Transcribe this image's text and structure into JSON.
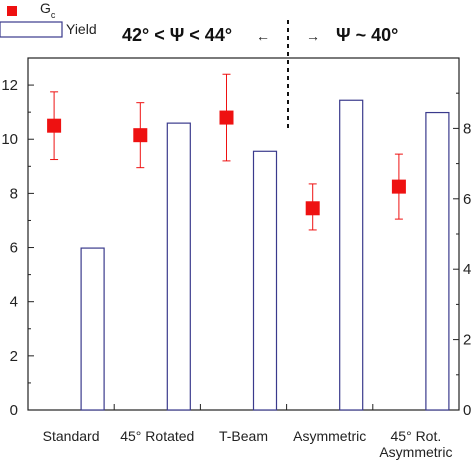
{
  "chart_data": {
    "type": "bar",
    "categories": [
      "Standard",
      "45° Rotated",
      "T-Beam",
      "Asymmetric",
      "45° Rot. Asymmetric"
    ],
    "category_lines": [
      [
        "Standard"
      ],
      [
        "45° Rotated"
      ],
      [
        "T-Beam"
      ],
      [
        "Asymmetric"
      ],
      [
        "45° Rot.",
        "Asymmetric"
      ]
    ],
    "series": [
      {
        "name": "G",
        "name_subscript": "c",
        "kind": "point-errorbar",
        "axis": "left",
        "values": [
          10.5,
          10.15,
          10.8,
          7.45,
          8.25
        ],
        "err_low": [
          1.25,
          1.2,
          1.6,
          0.8,
          1.2
        ],
        "err_high": [
          1.25,
          1.2,
          1.6,
          0.9,
          1.2
        ],
        "color": "#ee1111"
      },
      {
        "name": "Yield",
        "kind": "bar",
        "axis": "right",
        "values": [
          4.6,
          8.15,
          7.35,
          8.8,
          8.45
        ],
        "color": "#3a3a8c"
      }
    ],
    "y_left": {
      "range": [
        0,
        13
      ],
      "ticks": [
        0,
        2,
        4,
        6,
        8,
        10,
        12
      ]
    },
    "y_right": {
      "range": [
        0,
        10
      ],
      "ticks": [
        0,
        2,
        4,
        6,
        8
      ]
    },
    "annotations": {
      "left_text": "42° < Ψ < 44°",
      "right_text": "Ψ ~ 40°",
      "arrow_left": "←",
      "arrow_right": "→"
    },
    "legend_position": "top-left",
    "title": "",
    "xlabel": "",
    "ylabel": ""
  }
}
